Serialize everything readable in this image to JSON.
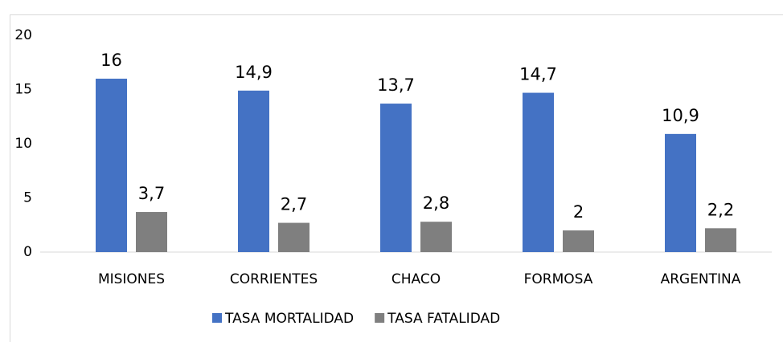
{
  "chart_data": {
    "type": "bar",
    "categories": [
      "MISIONES",
      "CORRIENTES",
      "CHACO",
      "FORMOSA",
      "ARGENTINA"
    ],
    "series": [
      {
        "name": "TASA MORTALIDAD",
        "color": "#4472c4",
        "values": [
          16,
          14.9,
          13.7,
          14.7,
          10.9
        ],
        "value_labels": [
          "16",
          "14,9",
          "13,7",
          "14,7",
          "10,9"
        ]
      },
      {
        "name": "TASA FATALIDAD",
        "color": "#7f7f7f",
        "values": [
          3.7,
          2.7,
          2.8,
          2,
          2.2
        ],
        "value_labels": [
          "3,7",
          "2,7",
          "2,8",
          "2",
          "2,2"
        ]
      }
    ],
    "ylim": [
      0,
      20
    ],
    "yticks": [
      0,
      5,
      10,
      15,
      20
    ],
    "grid": false,
    "legend": "bottom"
  }
}
